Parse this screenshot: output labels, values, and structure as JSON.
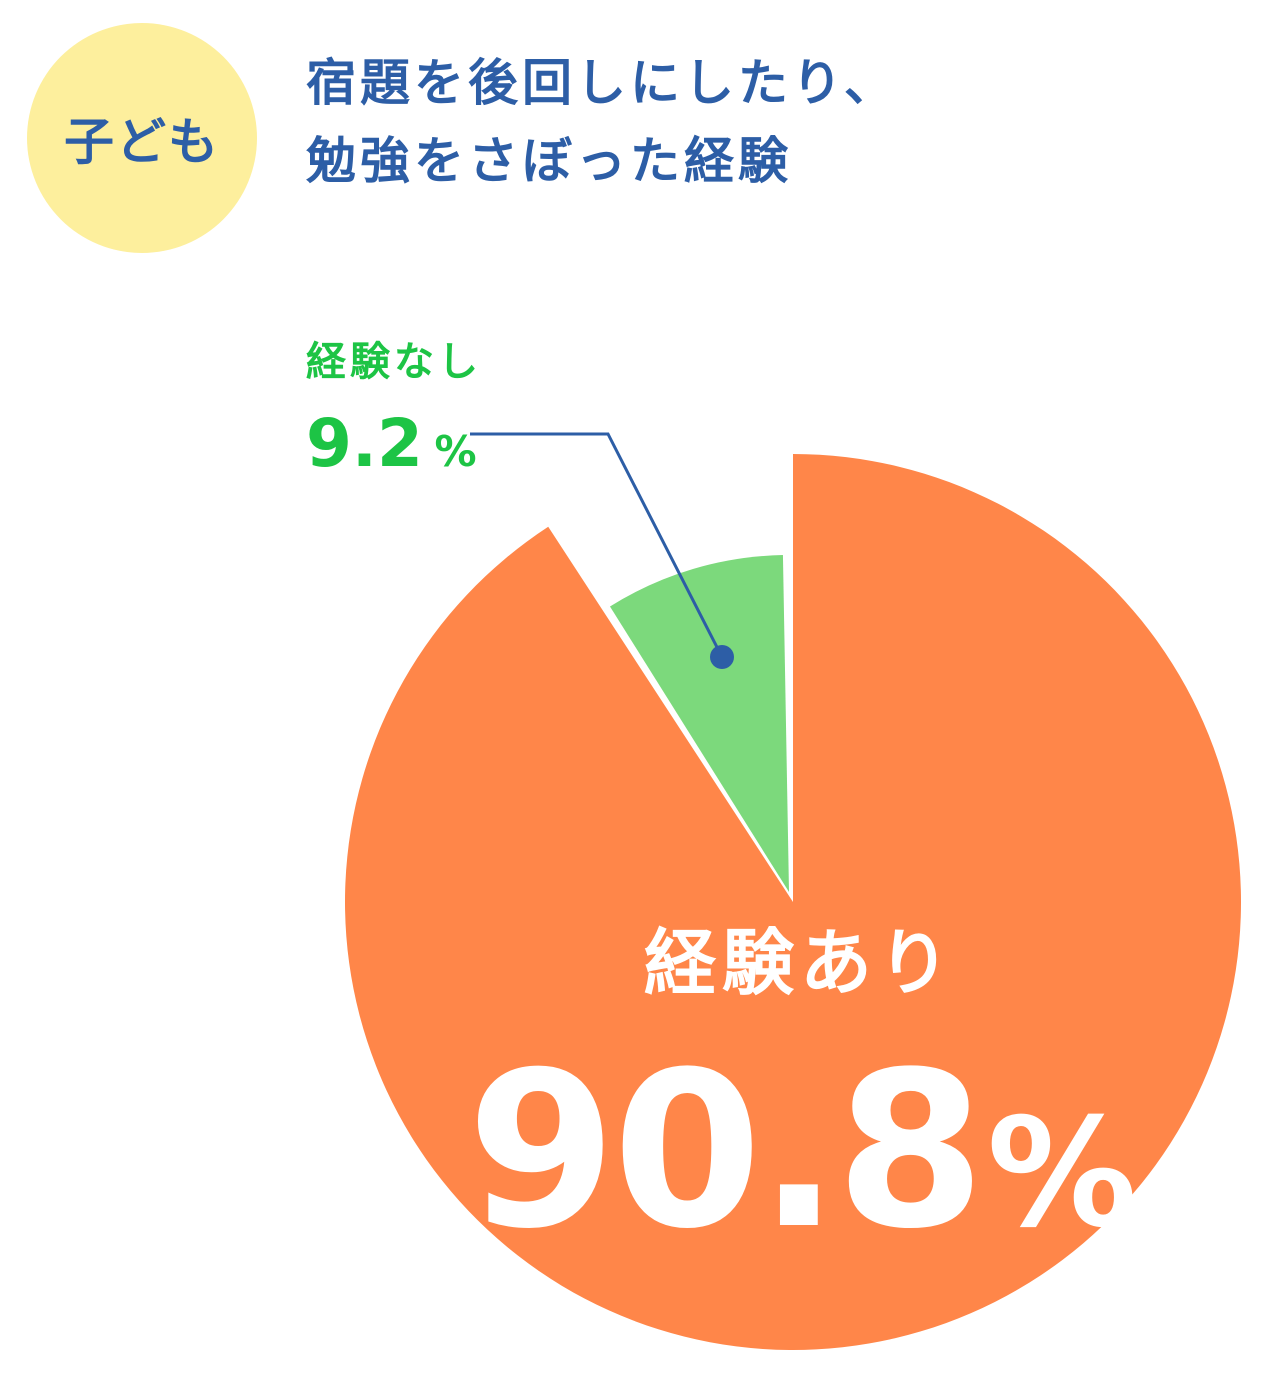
{
  "badge": {
    "label": "子ども",
    "bg": "#FDEF9D",
    "color": "#2D5EA6"
  },
  "title": {
    "line1": "宿題を後回しにしたり、",
    "line2": "勉強をさぼった経験",
    "color": "#2D5EA6"
  },
  "chart_data": {
    "type": "pie",
    "slices": [
      {
        "label": "経験あり",
        "value": 90.8,
        "value_text": "90.8",
        "unit": "%",
        "color": "#FF8649",
        "text_color": "#FFFFFF"
      },
      {
        "label": "経験なし",
        "value": 9.2,
        "value_text": "9.2",
        "unit": "%",
        "color": "#7CD97C",
        "text_color": "#1DC445"
      }
    ],
    "start": "12 o'clock",
    "direction": "clockwise",
    "callout_line_color": "#2D5EA6"
  }
}
